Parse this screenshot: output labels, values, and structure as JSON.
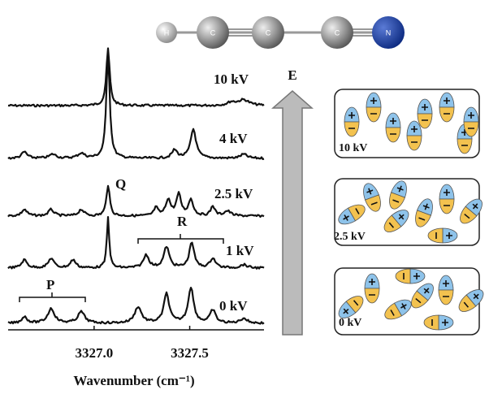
{
  "molecule": {
    "atoms": [
      "H",
      "C",
      "C",
      "C",
      "N"
    ]
  },
  "chart_data": {
    "type": "line",
    "xlabel": "Wavenumber (cm⁻¹)",
    "xlim": [
      3326.58,
      3327.88
    ],
    "xticks": [
      {
        "value": 3327.0,
        "label": "3327.0"
      },
      {
        "value": 3327.5,
        "label": "3327.5"
      }
    ],
    "trace_labels": [
      "10 kV",
      "4 kV",
      "2.5 kV",
      "1 kV",
      "0 kV"
    ],
    "annotations": [
      "Q",
      "P",
      "R"
    ]
  },
  "field_arrow": "E",
  "panels": [
    "10 kV",
    "2.5 kV",
    "0 kV"
  ]
}
